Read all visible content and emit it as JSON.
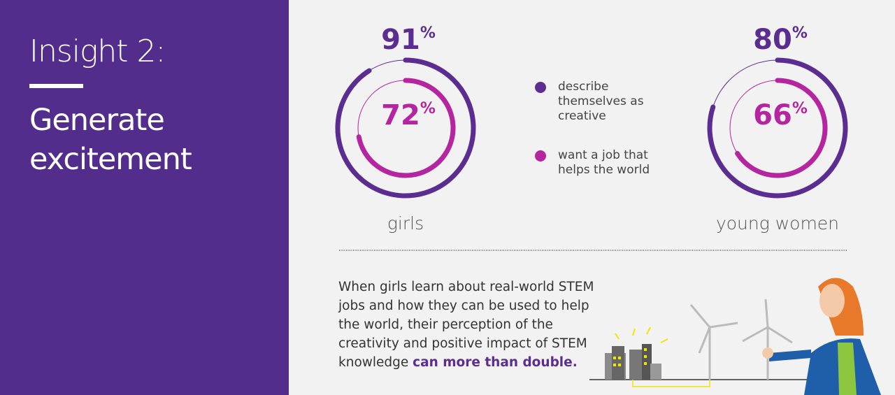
{
  "sidebar": {
    "title": "Insight 2:",
    "subtitle": "Generate excitement"
  },
  "legend": [
    {
      "name": "describe themselves as creative",
      "color": "#5c2d91"
    },
    {
      "name": "want a job that helps the world",
      "color": "#b4259f"
    }
  ],
  "chart_data": [
    {
      "type": "ring",
      "title": "girls",
      "ylim": [
        0,
        100
      ],
      "series": [
        {
          "color": "#5c2d91",
          "values": [
            91
          ],
          "value_labels": [
            "91%"
          ]
        },
        {
          "color": "#b4259f",
          "values": [
            72
          ],
          "value_labels": [
            "72%"
          ]
        }
      ]
    },
    {
      "type": "ring",
      "title": "young women",
      "ylim": [
        0,
        100
      ],
      "series": [
        {
          "color": "#5c2d91",
          "values": [
            80
          ],
          "value_labels": [
            "80%"
          ]
        },
        {
          "color": "#b4259f",
          "values": [
            66
          ],
          "value_labels": [
            "66%"
          ]
        }
      ]
    }
  ],
  "body": {
    "text": "When girls learn about real-world STEM jobs and how they can be used to help the world, their perception of the creativity and positive impact of STEM knowledge",
    "emphasis": "can more than double."
  }
}
